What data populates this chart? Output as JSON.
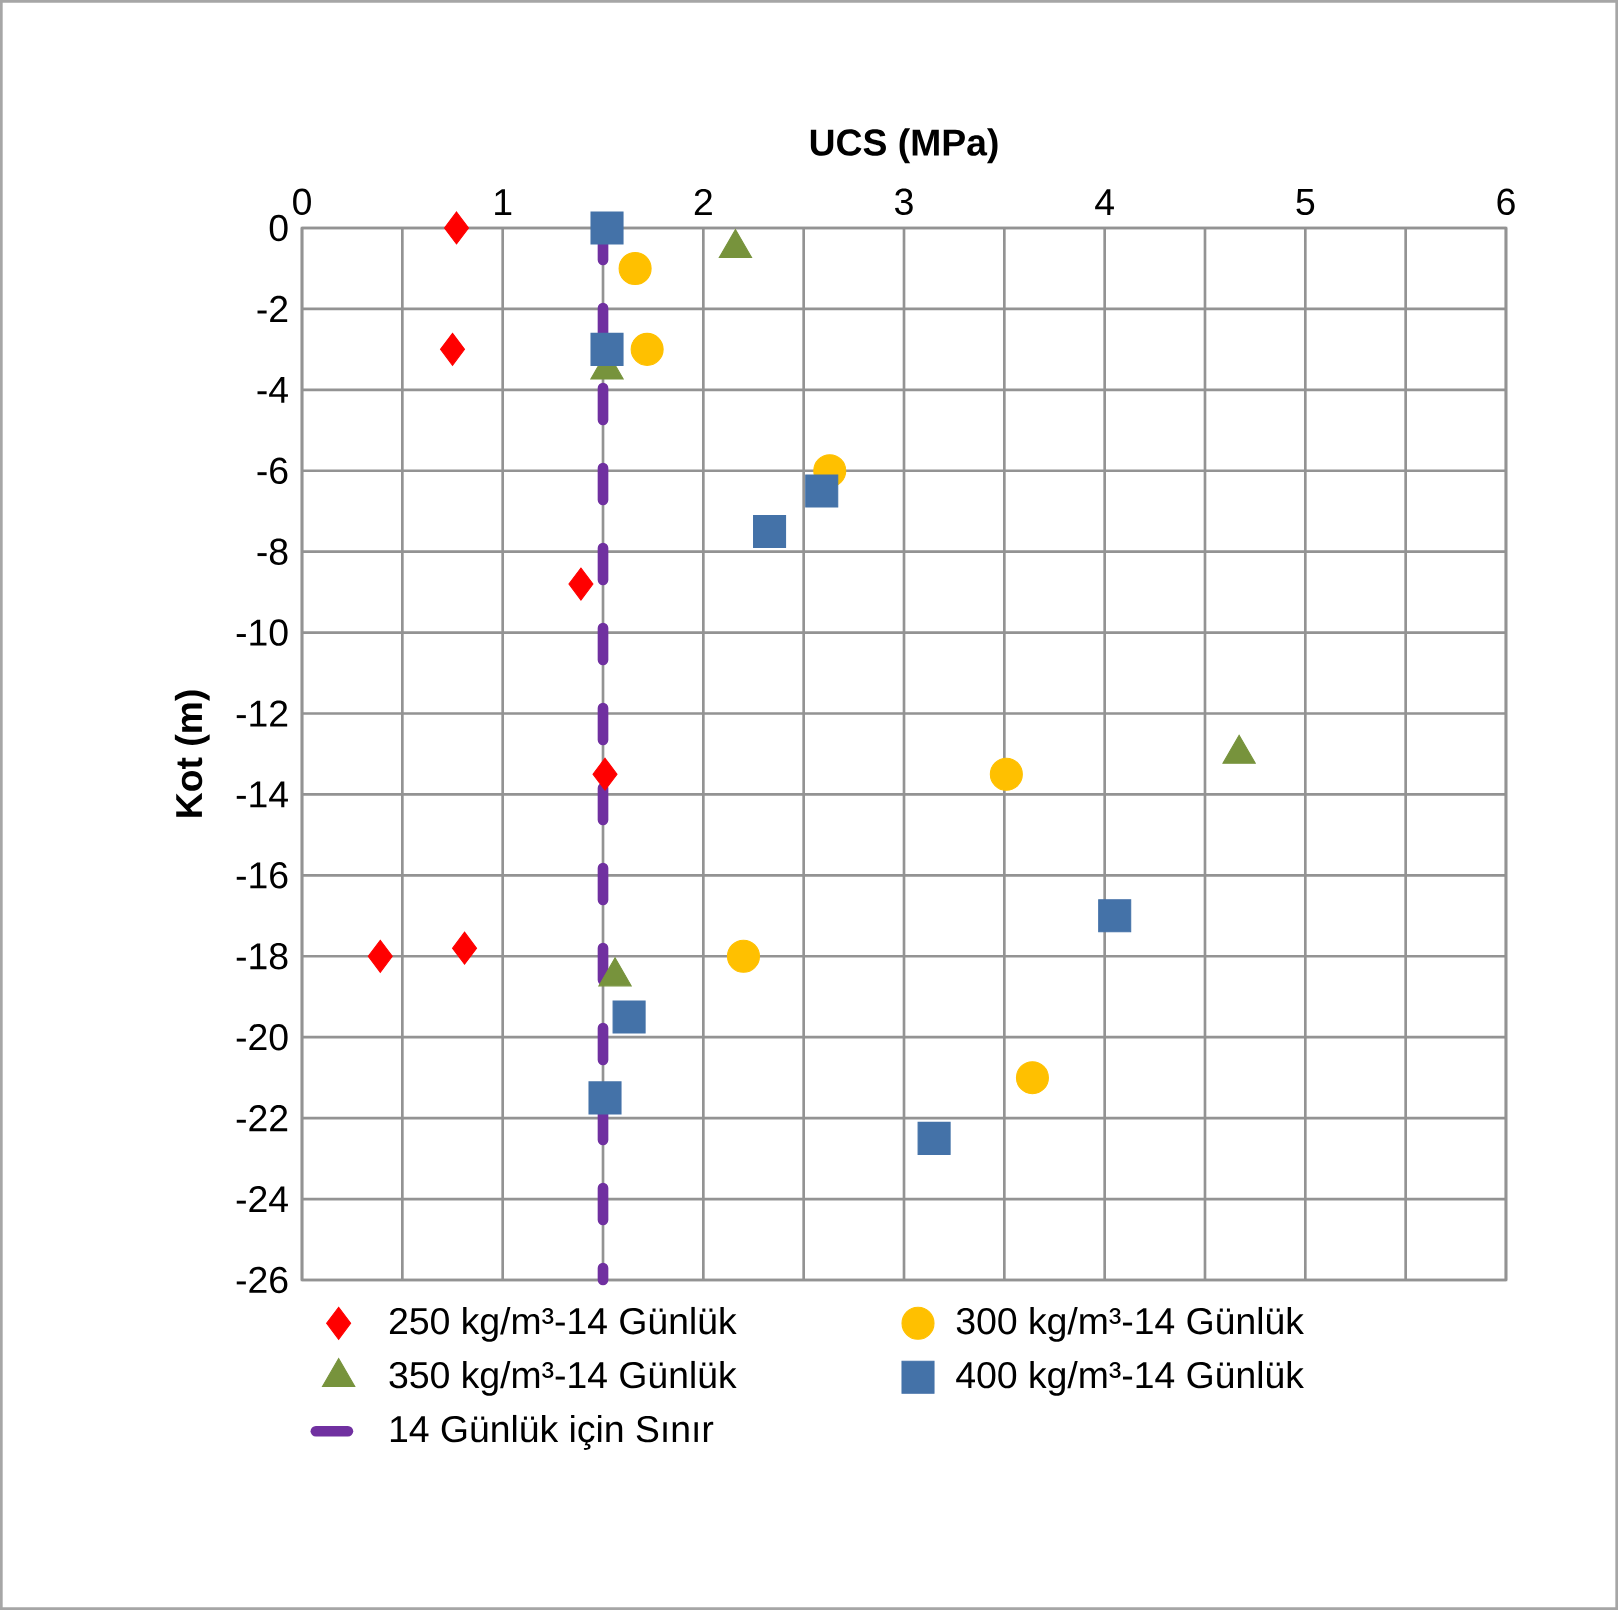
{
  "chart_data": {
    "type": "scatter",
    "xlabel": "UCS (MPa)",
    "ylabel": "Kot (m)",
    "xlim": [
      0,
      6
    ],
    "ylim": [
      -26,
      0
    ],
    "xticks": [
      0,
      {
        "value": 0.5,
        "label": null
      },
      1,
      {
        "value": 1.5,
        "label": null
      },
      2,
      {
        "value": 2.5,
        "label": null
      },
      3,
      {
        "value": 3.5,
        "label": null
      },
      4,
      {
        "value": 4.5,
        "label": null
      },
      5,
      {
        "value": 5.5,
        "label": null
      },
      6
    ],
    "yticks": [
      0,
      -2,
      -4,
      -6,
      -8,
      -10,
      -12,
      -14,
      -16,
      -18,
      -20,
      -22,
      -24,
      -26
    ],
    "grid": true,
    "legend": "bottom",
    "series": [
      {
        "name": "250 kg/m³-14 Günlük",
        "color": "#ff0000",
        "marker": "diamond",
        "x": [
          0.77,
          0.75,
          1.39,
          1.51,
          0.39,
          0.81
        ],
        "values": [
          0,
          -3,
          -8.8,
          -13.5,
          -18,
          -17.8
        ]
      },
      {
        "name": "300 kg/m³-14 Günlük",
        "color": "#ffc000",
        "marker": "circle",
        "x": [
          1.66,
          1.72,
          2.63,
          3.51,
          2.2,
          3.64
        ],
        "values": [
          -1,
          -3,
          -6,
          -13.5,
          -18,
          -21
        ]
      },
      {
        "name": "350 kg/m³-14 Günlük",
        "color": "#77933c",
        "marker": "triangle",
        "x": [
          2.16,
          1.52,
          4.67,
          1.56
        ],
        "values": [
          -0.5,
          -3.5,
          -13,
          -18.5
        ]
      },
      {
        "name": "400 kg/m³-14 Günlük",
        "color": "#4472a8",
        "marker": "square",
        "x": [
          1.52,
          1.52,
          2.59,
          2.33,
          4.05,
          1.63,
          1.51,
          3.15
        ],
        "values": [
          0,
          -3,
          -6.5,
          -7.5,
          -17,
          -19.5,
          -21.5,
          -22.5
        ]
      },
      {
        "name": "14 Günlük için Sınır",
        "type": "line",
        "line_style": "dashed",
        "marker": "none",
        "color": "#7030a0",
        "x": [
          1.5,
          1.5
        ],
        "values": [
          0,
          -26
        ]
      }
    ]
  }
}
